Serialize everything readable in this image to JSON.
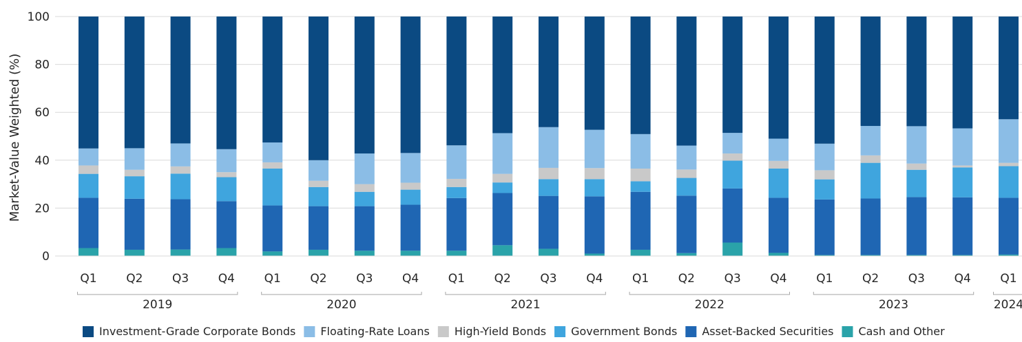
{
  "chart_data": {
    "type": "bar",
    "stacked": true,
    "ylabel": "Market-Value Weighted (%)",
    "ylim": [
      0,
      100
    ],
    "yticks": [
      0,
      20,
      40,
      60,
      80,
      100
    ],
    "grid": "horizontal",
    "legend_position": "bottom",
    "categories": [
      "Q1",
      "Q2",
      "Q3",
      "Q4",
      "Q1",
      "Q2",
      "Q3",
      "Q4",
      "Q1",
      "Q2",
      "Q3",
      "Q4",
      "Q1",
      "Q2",
      "Q3",
      "Q4",
      "Q1",
      "Q2",
      "Q3",
      "Q4",
      "Q1"
    ],
    "year_groups": [
      {
        "label": "2019",
        "start": 0,
        "end": 3
      },
      {
        "label": "2020",
        "start": 4,
        "end": 7
      },
      {
        "label": "2021",
        "start": 8,
        "end": 11
      },
      {
        "label": "2022",
        "start": 12,
        "end": 15
      },
      {
        "label": "2023",
        "start": 16,
        "end": 19
      },
      {
        "label": "2024",
        "start": 20,
        "end": 20
      }
    ],
    "series": [
      {
        "name": "Cash and Other",
        "color": "#2aa3a9",
        "values": [
          3.3,
          2.6,
          2.7,
          3.3,
          1.9,
          2.6,
          2.2,
          2.2,
          2.2,
          4.5,
          3.0,
          1.0,
          2.6,
          1.2,
          5.6,
          1.3,
          0.4,
          0.4,
          0.4,
          0.4,
          0.6
        ]
      },
      {
        "name": "Asset-Backed Securities",
        "color": "#1f66b3",
        "values": [
          21.0,
          21.3,
          21.0,
          19.6,
          19.2,
          18.2,
          18.6,
          19.2,
          22.0,
          21.8,
          22.1,
          23.9,
          24.2,
          24.0,
          22.6,
          23.0,
          23.2,
          23.6,
          24.2,
          24.1,
          23.7
        ]
      },
      {
        "name": "Government Bonds",
        "color": "#3fa5de",
        "values": [
          10.0,
          9.4,
          10.7,
          10.0,
          15.4,
          8.0,
          6.0,
          6.3,
          4.6,
          4.4,
          7.0,
          7.2,
          4.4,
          7.4,
          11.6,
          12.2,
          8.4,
          14.9,
          11.4,
          12.5,
          13.2
        ]
      },
      {
        "name": "High-Yield Bonds",
        "color": "#c9c9c9",
        "values": [
          3.5,
          2.7,
          3.0,
          2.1,
          2.6,
          2.6,
          3.2,
          2.9,
          3.4,
          3.6,
          4.7,
          4.6,
          5.3,
          3.5,
          3.0,
          3.2,
          3.8,
          3.1,
          2.6,
          0.8,
          1.4
        ]
      },
      {
        "name": "Floating-Rate Loans",
        "color": "#8bbde6",
        "values": [
          7.1,
          9.0,
          9.6,
          9.6,
          8.3,
          8.6,
          12.8,
          12.4,
          14.0,
          17.0,
          17.0,
          16.0,
          14.4,
          10.0,
          8.6,
          9.3,
          11.1,
          12.3,
          15.6,
          15.5,
          18.2
        ]
      },
      {
        "name": "Investment-Grade Corporate Bonds",
        "color": "#0b4a82",
        "values": [
          55.1,
          55.0,
          53.0,
          55.4,
          52.6,
          60.0,
          57.2,
          57.0,
          53.8,
          48.7,
          46.2,
          47.3,
          49.1,
          53.9,
          48.6,
          51.0,
          53.1,
          45.7,
          45.8,
          46.7,
          42.9
        ]
      }
    ],
    "legend_order": [
      "Investment-Grade Corporate Bonds",
      "Floating-Rate Loans",
      "High-Yield Bonds",
      "Government Bonds",
      "Asset-Backed Securities",
      "Cash and Other"
    ]
  }
}
